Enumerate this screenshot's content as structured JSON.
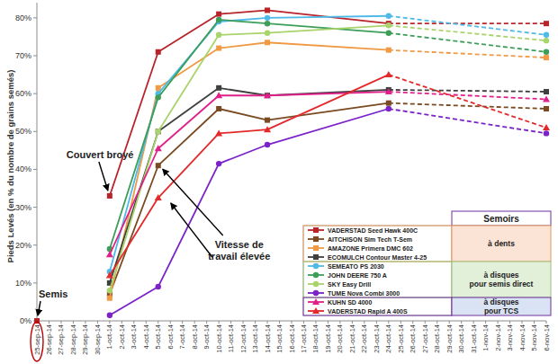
{
  "chart_data": {
    "type": "line",
    "y_label": "Pieds Levés (en % du nombre de grains semés)",
    "categories": [
      "25-sep-14",
      "26-sep-14",
      "27-sep-14",
      "28-sep-14",
      "29-sep-14",
      "30-sep-14",
      "1-oct-14",
      "2-oct-14",
      "3-oct-14",
      "4-oct-14",
      "5-oct-14",
      "6-oct-14",
      "7-oct-14",
      "8-oct-14",
      "9-oct-14",
      "10-oct-14",
      "11-oct-14",
      "12-oct-14",
      "13-oct-14",
      "14-oct-14",
      "15-oct-14",
      "16-oct-14",
      "17-oct-14",
      "18-oct-14",
      "19-oct-14",
      "20-oct-14",
      "21-oct-14",
      "22-oct-14",
      "23-oct-14",
      "24-oct-14",
      "25-oct-14",
      "26-oct-14",
      "27-oct-14",
      "28-oct-14",
      "29-oct-14",
      "30-oct-14",
      "31-oct-14",
      "1-nov-14",
      "2-nov-14",
      "3-nov-14",
      "4-nov-14",
      "5-nov-14",
      "6-nov-14"
    ],
    "ylim": [
      0,
      84
    ],
    "yticks": [
      {
        "value": 0,
        "label": "0%"
      },
      {
        "value": 10,
        "label": "10%"
      },
      {
        "value": 20,
        "label": "20%"
      },
      {
        "value": 30,
        "label": "30%"
      },
      {
        "value": 40,
        "label": "40%"
      },
      {
        "value": 50,
        "label": "50%"
      },
      {
        "value": 60,
        "label": "60%"
      },
      {
        "value": 70,
        "label": "70%"
      },
      {
        "value": 80,
        "label": "80%"
      }
    ],
    "grid": false,
    "legend": "bottom-right",
    "legend_title": "Semoirs",
    "legend_groups": [
      {
        "label": [
          "à dents"
        ],
        "series": [
          0,
          1,
          2,
          3
        ]
      },
      {
        "label": [
          "à disques",
          "pour semis direct"
        ],
        "series": [
          4,
          5,
          6,
          7
        ]
      },
      {
        "label": [
          "à disques",
          "pour TCS"
        ],
        "series": [
          8,
          9
        ]
      }
    ],
    "annotations": [
      [
        "Semis"
      ],
      [
        "Couvert broyé"
      ],
      [
        "Vitesse de",
        "travail élevée"
      ]
    ],
    "series": [
      {
        "name": "VADERSTAD Seed Hawk 400C",
        "color": "#b8242a",
        "marker": "square",
        "values": [
          0,
          null,
          null,
          null,
          null,
          null,
          33,
          null,
          null,
          null,
          71,
          null,
          null,
          null,
          null,
          81,
          null,
          null,
          null,
          82,
          null,
          null,
          null,
          null,
          null,
          null,
          null,
          null,
          null,
          78.5,
          null,
          null,
          null,
          null,
          null,
          null,
          null,
          null,
          null,
          null,
          null,
          null,
          78.5
        ]
      },
      {
        "name": "AITCHISON Sim Tech T-Sem",
        "color": "#7a4a22",
        "marker": "square",
        "values": [
          null,
          null,
          null,
          null,
          null,
          null,
          7,
          null,
          null,
          null,
          41,
          null,
          null,
          null,
          null,
          56,
          null,
          null,
          null,
          53,
          null,
          null,
          null,
          null,
          null,
          null,
          null,
          null,
          null,
          57.5,
          null,
          null,
          null,
          null,
          null,
          null,
          null,
          null,
          null,
          null,
          null,
          null,
          56
        ]
      },
      {
        "name": "AMAZONE Primera DMC 602",
        "color": "#f09a45",
        "marker": "square",
        "values": [
          null,
          null,
          null,
          null,
          null,
          null,
          6,
          null,
          null,
          null,
          61.5,
          null,
          null,
          null,
          null,
          72,
          null,
          null,
          null,
          73.5,
          null,
          null,
          null,
          null,
          null,
          null,
          null,
          null,
          null,
          71.5,
          null,
          null,
          null,
          null,
          null,
          null,
          null,
          null,
          null,
          null,
          null,
          null,
          69.5
        ]
      },
      {
        "name": "ECOMULCH Contour Master 4-25",
        "color": "#3f3f3f",
        "marker": "square",
        "values": [
          null,
          null,
          null,
          null,
          null,
          null,
          10,
          null,
          null,
          null,
          50,
          null,
          null,
          null,
          null,
          61.5,
          null,
          null,
          null,
          59.5,
          null,
          null,
          null,
          null,
          null,
          null,
          null,
          null,
          null,
          61,
          null,
          null,
          null,
          null,
          null,
          null,
          null,
          null,
          null,
          null,
          null,
          null,
          60.5
        ]
      },
      {
        "name": "SEMEATO PS 2030",
        "color": "#4fb9e8",
        "marker": "circle",
        "values": [
          null,
          null,
          null,
          null,
          null,
          null,
          13,
          null,
          null,
          null,
          60,
          null,
          null,
          null,
          null,
          79,
          null,
          null,
          null,
          80,
          null,
          null,
          null,
          null,
          null,
          null,
          null,
          null,
          null,
          80.5,
          null,
          null,
          null,
          null,
          null,
          null,
          null,
          null,
          null,
          null,
          null,
          null,
          75.5
        ]
      },
      {
        "name": "JOHN DEERE 750 A",
        "color": "#3c9e58",
        "marker": "circle",
        "values": [
          null,
          null,
          null,
          null,
          null,
          null,
          19,
          null,
          null,
          null,
          59,
          null,
          null,
          null,
          null,
          79.5,
          null,
          null,
          null,
          78.5,
          null,
          null,
          null,
          null,
          null,
          null,
          null,
          null,
          null,
          76,
          null,
          null,
          null,
          null,
          null,
          null,
          null,
          null,
          null,
          null,
          null,
          null,
          71
        ]
      },
      {
        "name": "SKY Easy Drill",
        "color": "#a9d36b",
        "marker": "circle",
        "values": [
          null,
          null,
          null,
          null,
          null,
          null,
          8,
          null,
          null,
          null,
          50,
          null,
          null,
          null,
          null,
          75.5,
          null,
          null,
          null,
          76,
          null,
          null,
          null,
          null,
          null,
          null,
          null,
          null,
          null,
          78,
          null,
          null,
          null,
          null,
          null,
          null,
          null,
          null,
          null,
          null,
          null,
          null,
          74
        ]
      },
      {
        "name": "TUME Nova Combi 3000",
        "color": "#7b22c8",
        "marker": "circle",
        "values": [
          null,
          null,
          null,
          null,
          null,
          null,
          1.5,
          null,
          null,
          null,
          9,
          null,
          null,
          null,
          null,
          41.5,
          null,
          null,
          null,
          46.5,
          null,
          null,
          null,
          null,
          null,
          null,
          null,
          null,
          null,
          56,
          null,
          null,
          null,
          null,
          null,
          null,
          null,
          null,
          null,
          null,
          null,
          null,
          49.5
        ]
      },
      {
        "name": "KUHN SD 4000",
        "color": "#e0208a",
        "marker": "triangle",
        "values": [
          null,
          null,
          null,
          null,
          null,
          null,
          17.5,
          null,
          null,
          null,
          45.5,
          null,
          null,
          null,
          null,
          59.5,
          null,
          null,
          null,
          59.5,
          null,
          null,
          null,
          null,
          null,
          null,
          null,
          null,
          null,
          60.5,
          null,
          null,
          null,
          null,
          null,
          null,
          null,
          null,
          null,
          null,
          null,
          null,
          58.5
        ]
      },
      {
        "name": "VADERSTAD Rapid A 400S",
        "color": "#e3292b",
        "marker": "triangle",
        "values": [
          null,
          null,
          null,
          null,
          null,
          null,
          12,
          null,
          null,
          null,
          32.5,
          null,
          null,
          null,
          null,
          49.5,
          null,
          null,
          null,
          50.5,
          null,
          null,
          null,
          null,
          null,
          null,
          null,
          null,
          null,
          65,
          null,
          null,
          null,
          null,
          null,
          null,
          null,
          null,
          null,
          null,
          null,
          null,
          51
        ]
      }
    ]
  }
}
